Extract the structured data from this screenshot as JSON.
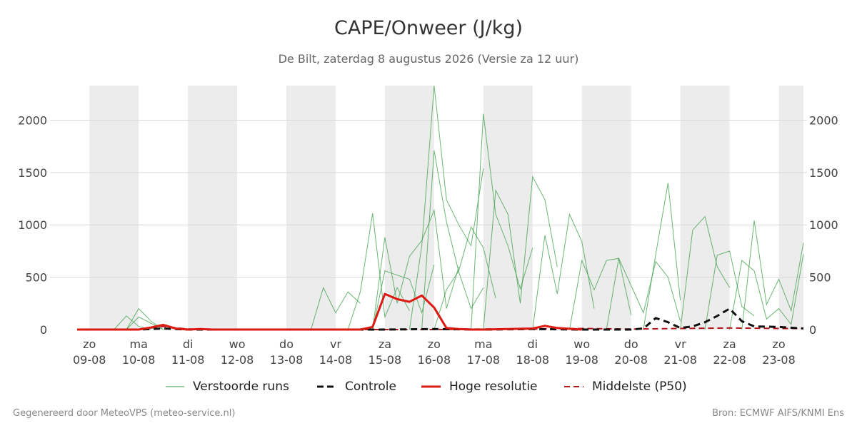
{
  "header": {
    "title": "CAPE/Onweer (J/kg)",
    "subtitle": "De Bilt, zaterdag  8 augustus 2026 (Versie za 12 uur)"
  },
  "legend": {
    "perturbed": "Verstoorde runs",
    "control": "Controle",
    "hires": "Hoge resolutie",
    "median": "Middelste (P50)"
  },
  "footer": {
    "left": "Gegenereerd door MeteoVPS (meteo-service.nl)",
    "right": "Bron: ECMWF AIFS/KNMI Ens"
  },
  "colors": {
    "perturbed": "#3a9d45",
    "control": "#111111",
    "hires": "#dd1a12",
    "median": "#b3151b",
    "weekend_band": "#ececec",
    "grid": "#d9d9d9"
  },
  "chart_data": {
    "type": "line",
    "title": "CAPE/Onweer (J/kg)",
    "ylabel": "",
    "xlabel": "",
    "ylim": [
      0,
      2330
    ],
    "yticks": [
      0,
      500,
      1000,
      1500,
      2000
    ],
    "x_unit": "days since 2026-08-09 00:00",
    "xlim": [
      -0.25,
      14.5
    ],
    "xticks": [
      {
        "day": "zo",
        "date": "09-08"
      },
      {
        "day": "ma",
        "date": "10-08"
      },
      {
        "day": "di",
        "date": "11-08"
      },
      {
        "day": "wo",
        "date": "12-08"
      },
      {
        "day": "do",
        "date": "13-08"
      },
      {
        "day": "vr",
        "date": "14-08"
      },
      {
        "day": "za",
        "date": "15-08"
      },
      {
        "day": "zo",
        "date": "16-08"
      },
      {
        "day": "ma",
        "date": "17-08"
      },
      {
        "day": "di",
        "date": "18-08"
      },
      {
        "day": "wo",
        "date": "19-08"
      },
      {
        "day": "do",
        "date": "20-08"
      },
      {
        "day": "vr",
        "date": "21-08"
      },
      {
        "day": "za",
        "date": "22-08"
      },
      {
        "day": "zo",
        "date": "23-08"
      }
    ],
    "weekend_bands": [
      [
        0,
        1
      ],
      [
        2,
        3
      ],
      [
        4,
        5
      ],
      [
        6,
        7
      ],
      [
        8,
        9
      ],
      [
        10,
        11
      ],
      [
        12,
        13
      ],
      [
        14,
        14.5
      ]
    ],
    "grid": true,
    "legend_position": "bottom",
    "series": [
      {
        "name": "Hoge resolutie",
        "style": "solid",
        "color": "#dd1a12",
        "x": [
          -0.25,
          0,
          0.5,
          1,
          1.25,
          1.5,
          1.75,
          2,
          2.25,
          2.5,
          3,
          3.5,
          4,
          4.5,
          5,
          5.25,
          5.5,
          5.75,
          6,
          6.25,
          6.5,
          6.75,
          7,
          7.25,
          7.5,
          7.75,
          8,
          8.5,
          9,
          9.25,
          9.5,
          10
        ],
        "y": [
          0,
          0,
          0,
          0,
          20,
          45,
          10,
          0,
          5,
          0,
          0,
          0,
          0,
          0,
          0,
          0,
          0,
          25,
          340,
          290,
          265,
          325,
          210,
          15,
          5,
          0,
          0,
          5,
          10,
          35,
          15,
          0
        ]
      },
      {
        "name": "Controle",
        "style": "dashed",
        "color": "#111111",
        "x": [
          0,
          1,
          1.5,
          2,
          3,
          4,
          5,
          6,
          7,
          8,
          9,
          10,
          10.5,
          11,
          11.25,
          11.5,
          11.75,
          12,
          12.25,
          12.5,
          12.75,
          13,
          13.25,
          13.5,
          14,
          14.5
        ],
        "y": [
          0,
          0,
          10,
          0,
          0,
          0,
          0,
          0,
          5,
          0,
          5,
          0,
          0,
          0,
          10,
          110,
          70,
          15,
          30,
          70,
          130,
          200,
          80,
          30,
          25,
          10
        ]
      },
      {
        "name": "Middelste (P50)",
        "style": "dashed",
        "color": "#b3151b",
        "x": [
          -0.25,
          1,
          1.5,
          2,
          3,
          4,
          5,
          6,
          7,
          8,
          9,
          10,
          11,
          12,
          13,
          14,
          14.5
        ],
        "y": [
          0,
          0,
          30,
          5,
          0,
          0,
          0,
          0,
          0,
          5,
          5,
          10,
          5,
          10,
          15,
          10,
          10
        ]
      },
      {
        "name": "Verstoorde runs",
        "style": "thin",
        "color": "#3a9d45",
        "members": [
          {
            "x": [
              0.75,
              1,
              1.25,
              1.5
            ],
            "y": [
              0,
              120,
              60,
              0
            ]
          },
          {
            "x": [
              0.75,
              1,
              1.25,
              1.5
            ],
            "y": [
              0,
              200,
              80,
              0
            ]
          },
          {
            "x": [
              0.5,
              0.75,
              1,
              1.25
            ],
            "y": [
              0,
              130,
              30,
              0
            ]
          },
          {
            "x": [
              4.5,
              4.75,
              5,
              5.25,
              5.5
            ],
            "y": [
              0,
              400,
              160,
              360,
              250
            ]
          },
          {
            "x": [
              5.25,
              5.5,
              5.75,
              6,
              6.25,
              6.5
            ],
            "y": [
              0,
              360,
              1110,
              120,
              400,
              180
            ]
          },
          {
            "x": [
              5.75,
              6,
              6.25,
              6.5,
              6.75,
              7,
              7.25,
              7.5
            ],
            "y": [
              0,
              880,
              250,
              700,
              850,
              1140,
              200,
              600
            ]
          },
          {
            "x": [
              6.5,
              6.75,
              7,
              7.25,
              7.5,
              7.75,
              8
            ],
            "y": [
              0,
              800,
              2330,
              1240,
              1000,
              800,
              1540
            ]
          },
          {
            "x": [
              6.75,
              7,
              7.25,
              7.5,
              7.75,
              8
            ],
            "y": [
              0,
              1710,
              1030,
              550,
              200,
              400
            ]
          },
          {
            "x": [
              7.75,
              8,
              8.25,
              8.5,
              8.75,
              9
            ],
            "y": [
              0,
              2060,
              1100,
              800,
              390,
              780
            ]
          },
          {
            "x": [
              8,
              8.25,
              8.5,
              8.75,
              9,
              9.25,
              9.5
            ],
            "y": [
              0,
              1330,
              1100,
              250,
              1460,
              1240,
              600
            ]
          },
          {
            "x": [
              9,
              9.25,
              9.5,
              9.75,
              10,
              10.25
            ],
            "y": [
              0,
              900,
              340,
              1100,
              840,
              200
            ]
          },
          {
            "x": [
              9.75,
              10,
              10.25,
              10.5,
              10.75,
              11
            ],
            "y": [
              0,
              660,
              380,
              660,
              680,
              140
            ]
          },
          {
            "x": [
              11.25,
              11.5,
              11.75,
              12
            ],
            "y": [
              0,
              720,
              1400,
              280
            ]
          },
          {
            "x": [
              12,
              12.25,
              12.5,
              12.75,
              13
            ],
            "y": [
              0,
              950,
              1080,
              600,
              400
            ]
          },
          {
            "x": [
              13.25,
              13.5,
              13.75,
              14,
              14.25,
              14.5
            ],
            "y": [
              0,
              1040,
              240,
              480,
              180,
              830
            ]
          },
          {
            "x": [
              13,
              13.25,
              13.5,
              13.75,
              14,
              14.25,
              14.5
            ],
            "y": [
              0,
              660,
              560,
              100,
              200,
              50,
              720
            ]
          },
          {
            "x": [
              10.5,
              10.75,
              11,
              11.25,
              11.5,
              11.75,
              12
            ],
            "y": [
              0,
              680,
              420,
              160,
              650,
              500,
              80
            ]
          },
          {
            "x": [
              12.5,
              12.75,
              13,
              13.25,
              13.5
            ],
            "y": [
              0,
              710,
              750,
              220,
              130
            ]
          },
          {
            "x": [
              5.75,
              6,
              6.25,
              6.5,
              6.75,
              7
            ],
            "y": [
              0,
              560,
              520,
              480,
              160,
              620
            ]
          },
          {
            "x": [
              7,
              7.25,
              7.5,
              7.75,
              8,
              8.25
            ],
            "y": [
              0,
              380,
              560,
              980,
              780,
              300
            ]
          }
        ]
      }
    ]
  }
}
